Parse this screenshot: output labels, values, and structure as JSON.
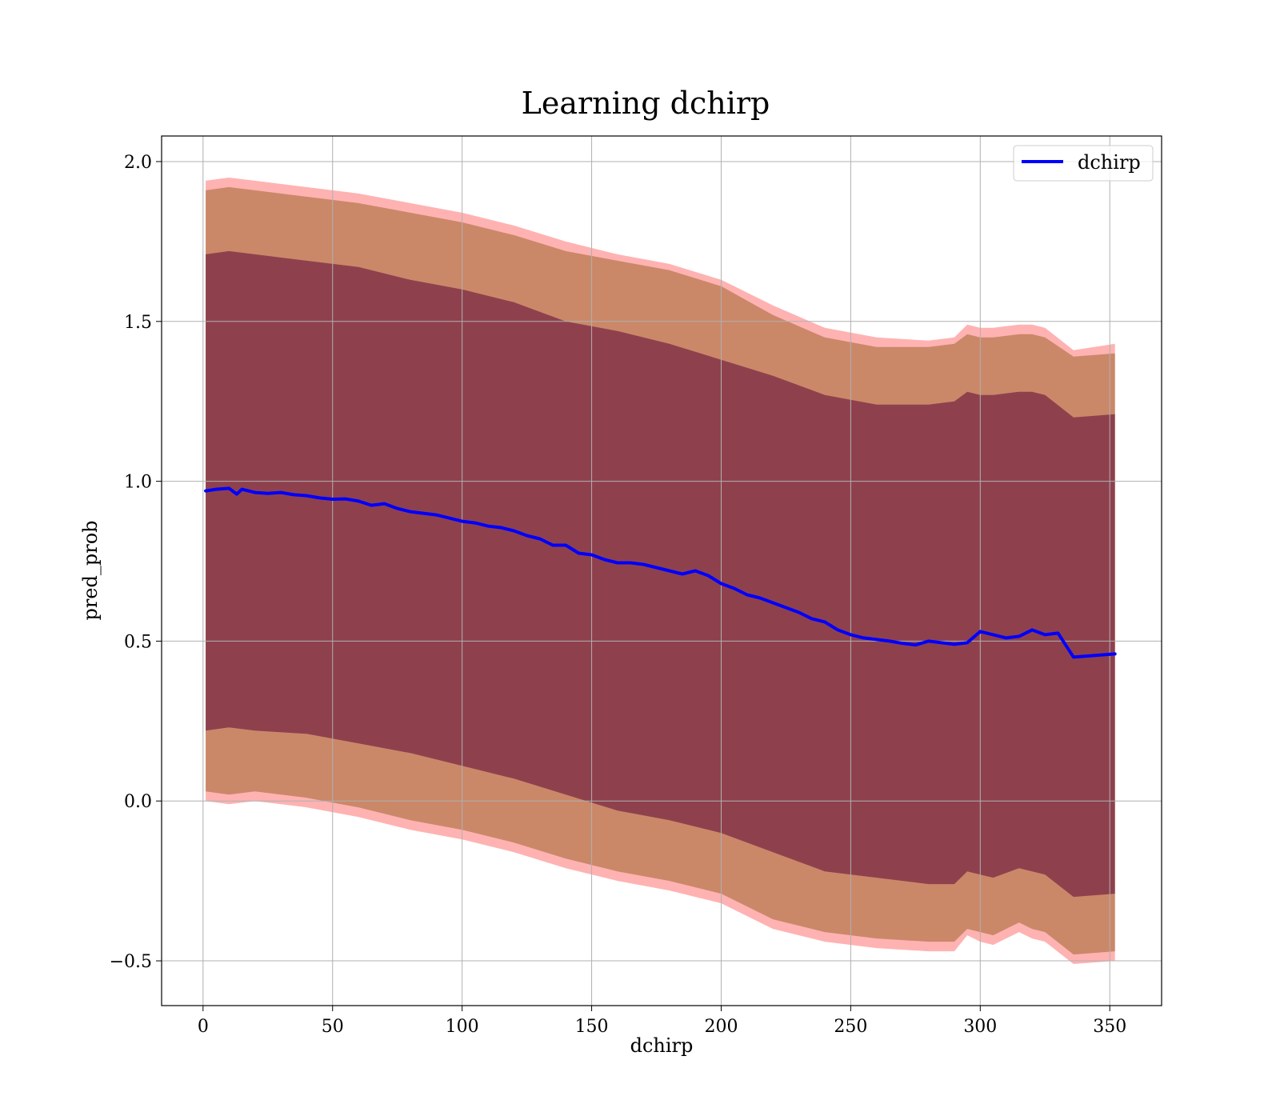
{
  "chart_data": {
    "type": "line",
    "title": "Learning dchirp",
    "xlabel": "dchirp",
    "ylabel": "pred_prob",
    "xlim": [
      -16,
      370
    ],
    "ylim": [
      -0.64,
      2.08
    ],
    "xticks": [
      0,
      50,
      100,
      150,
      200,
      250,
      300,
      350
    ],
    "yticks": [
      -0.5,
      0.0,
      0.5,
      1.0,
      1.5,
      2.0
    ],
    "xtick_labels": [
      "0",
      "50",
      "100",
      "150",
      "200",
      "250",
      "300",
      "350"
    ],
    "ytick_labels": [
      "−0.5",
      "0.0",
      "0.5",
      "1.0",
      "1.5",
      "2.0"
    ],
    "grid": true,
    "legend_position": "top-right",
    "series": [
      {
        "name": "dchirp",
        "color": "#0000ff",
        "x": [
          1,
          5,
          10,
          13,
          15,
          20,
          25,
          30,
          35,
          40,
          45,
          50,
          55,
          60,
          65,
          70,
          75,
          80,
          85,
          90,
          95,
          100,
          105,
          110,
          115,
          120,
          125,
          130,
          135,
          140,
          145,
          150,
          155,
          160,
          165,
          170,
          175,
          180,
          185,
          190,
          195,
          200,
          205,
          210,
          215,
          220,
          225,
          230,
          235,
          240,
          245,
          250,
          255,
          260,
          265,
          270,
          275,
          280,
          285,
          290,
          295,
          300,
          305,
          310,
          315,
          320,
          325,
          330,
          336,
          352
        ],
        "y": [
          0.97,
          0.975,
          0.978,
          0.96,
          0.975,
          0.965,
          0.962,
          0.965,
          0.958,
          0.955,
          0.948,
          0.944,
          0.945,
          0.938,
          0.925,
          0.93,
          0.915,
          0.905,
          0.9,
          0.895,
          0.885,
          0.875,
          0.87,
          0.86,
          0.855,
          0.845,
          0.83,
          0.82,
          0.8,
          0.8,
          0.775,
          0.77,
          0.755,
          0.745,
          0.745,
          0.74,
          0.73,
          0.72,
          0.71,
          0.72,
          0.705,
          0.68,
          0.665,
          0.645,
          0.635,
          0.62,
          0.605,
          0.59,
          0.57,
          0.56,
          0.535,
          0.52,
          0.51,
          0.505,
          0.5,
          0.493,
          0.488,
          0.5,
          0.495,
          0.49,
          0.495,
          0.53,
          0.52,
          0.51,
          0.515,
          0.535,
          0.52,
          0.525,
          0.45,
          0.46
        ]
      }
    ],
    "bands": [
      {
        "color": "#ff6666",
        "x": [
          1,
          10,
          20,
          40,
          60,
          80,
          100,
          120,
          140,
          160,
          180,
          200,
          220,
          240,
          260,
          280,
          290,
          295,
          300,
          305,
          315,
          320,
          325,
          336,
          352
        ],
        "upper": [
          1.94,
          1.95,
          1.94,
          1.92,
          1.9,
          1.87,
          1.84,
          1.8,
          1.75,
          1.71,
          1.68,
          1.63,
          1.55,
          1.48,
          1.45,
          1.44,
          1.45,
          1.49,
          1.48,
          1.48,
          1.49,
          1.49,
          1.48,
          1.41,
          1.43
        ],
        "lower": [
          0.0,
          -0.01,
          0.0,
          -0.02,
          -0.05,
          -0.09,
          -0.12,
          -0.16,
          -0.21,
          -0.25,
          -0.28,
          -0.32,
          -0.4,
          -0.44,
          -0.46,
          -0.47,
          -0.47,
          -0.42,
          -0.44,
          -0.45,
          -0.41,
          -0.43,
          -0.44,
          -0.51,
          -0.5
        ]
      },
      {
        "color": "#b87a50",
        "x": [
          1,
          10,
          20,
          40,
          60,
          80,
          100,
          120,
          140,
          160,
          180,
          200,
          220,
          240,
          260,
          280,
          290,
          295,
          300,
          305,
          315,
          320,
          325,
          336,
          352
        ],
        "upper": [
          1.91,
          1.92,
          1.91,
          1.89,
          1.87,
          1.84,
          1.81,
          1.77,
          1.72,
          1.69,
          1.66,
          1.61,
          1.52,
          1.45,
          1.42,
          1.42,
          1.43,
          1.46,
          1.45,
          1.45,
          1.46,
          1.46,
          1.45,
          1.39,
          1.4
        ],
        "lower": [
          0.03,
          0.02,
          0.03,
          0.01,
          -0.02,
          -0.06,
          -0.09,
          -0.13,
          -0.18,
          -0.22,
          -0.25,
          -0.29,
          -0.37,
          -0.41,
          -0.43,
          -0.44,
          -0.44,
          -0.4,
          -0.41,
          -0.42,
          -0.38,
          -0.4,
          -0.41,
          -0.48,
          -0.47
        ]
      },
      {
        "color": "#7a2a44",
        "x": [
          1,
          10,
          20,
          40,
          60,
          80,
          100,
          120,
          140,
          160,
          180,
          200,
          220,
          240,
          260,
          280,
          290,
          295,
          300,
          305,
          315,
          320,
          325,
          336,
          352
        ],
        "upper": [
          1.71,
          1.72,
          1.71,
          1.69,
          1.67,
          1.63,
          1.6,
          1.56,
          1.5,
          1.47,
          1.43,
          1.38,
          1.33,
          1.27,
          1.24,
          1.24,
          1.25,
          1.28,
          1.27,
          1.27,
          1.28,
          1.28,
          1.27,
          1.2,
          1.21
        ],
        "lower": [
          0.22,
          0.23,
          0.22,
          0.21,
          0.18,
          0.15,
          0.11,
          0.07,
          0.02,
          -0.03,
          -0.06,
          -0.1,
          -0.16,
          -0.22,
          -0.24,
          -0.26,
          -0.26,
          -0.22,
          -0.23,
          -0.24,
          -0.21,
          -0.22,
          -0.23,
          -0.3,
          -0.29
        ]
      }
    ]
  }
}
